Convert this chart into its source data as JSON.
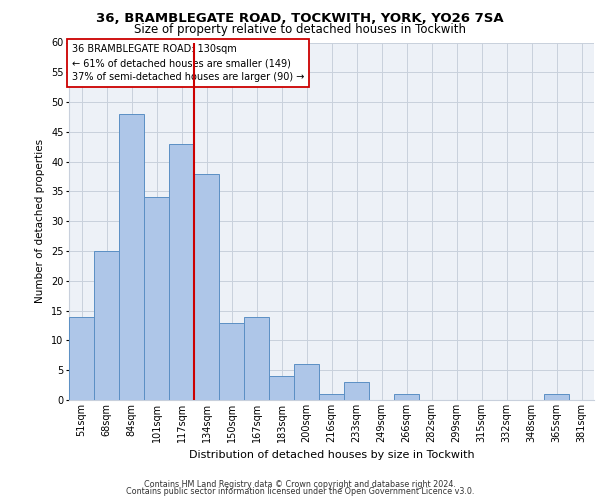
{
  "title_line1": "36, BRAMBLEGATE ROAD, TOCKWITH, YORK, YO26 7SA",
  "title_line2": "Size of property relative to detached houses in Tockwith",
  "xlabel": "Distribution of detached houses by size in Tockwith",
  "ylabel": "Number of detached properties",
  "bar_labels": [
    "51sqm",
    "68sqm",
    "84sqm",
    "101sqm",
    "117sqm",
    "134sqm",
    "150sqm",
    "167sqm",
    "183sqm",
    "200sqm",
    "216sqm",
    "233sqm",
    "249sqm",
    "266sqm",
    "282sqm",
    "299sqm",
    "315sqm",
    "332sqm",
    "348sqm",
    "365sqm",
    "381sqm"
  ],
  "bar_values": [
    14,
    25,
    48,
    34,
    43,
    38,
    13,
    14,
    4,
    6,
    1,
    3,
    0,
    1,
    0,
    0,
    0,
    0,
    0,
    1,
    0
  ],
  "bar_color": "#aec6e8",
  "bar_edge_color": "#5b8fc4",
  "vline_index": 5,
  "vline_color": "#cc0000",
  "annotation_text": "36 BRAMBLEGATE ROAD: 130sqm\n← 61% of detached houses are smaller (149)\n37% of semi-detached houses are larger (90) →",
  "annotation_box_color": "#ffffff",
  "annotation_box_edge": "#cc0000",
  "ylim": [
    0,
    60
  ],
  "yticks": [
    0,
    5,
    10,
    15,
    20,
    25,
    30,
    35,
    40,
    45,
    50,
    55,
    60
  ],
  "footer_line1": "Contains HM Land Registry data © Crown copyright and database right 2024.",
  "footer_line2": "Contains public sector information licensed under the Open Government Licence v3.0.",
  "bg_color": "#edf1f7",
  "grid_color": "#c8d0dc",
  "title1_fontsize": 9.5,
  "title2_fontsize": 8.5,
  "ylabel_fontsize": 7.5,
  "xlabel_fontsize": 8.0,
  "tick_fontsize": 7.0,
  "annot_fontsize": 7.0,
  "footer_fontsize": 5.8
}
